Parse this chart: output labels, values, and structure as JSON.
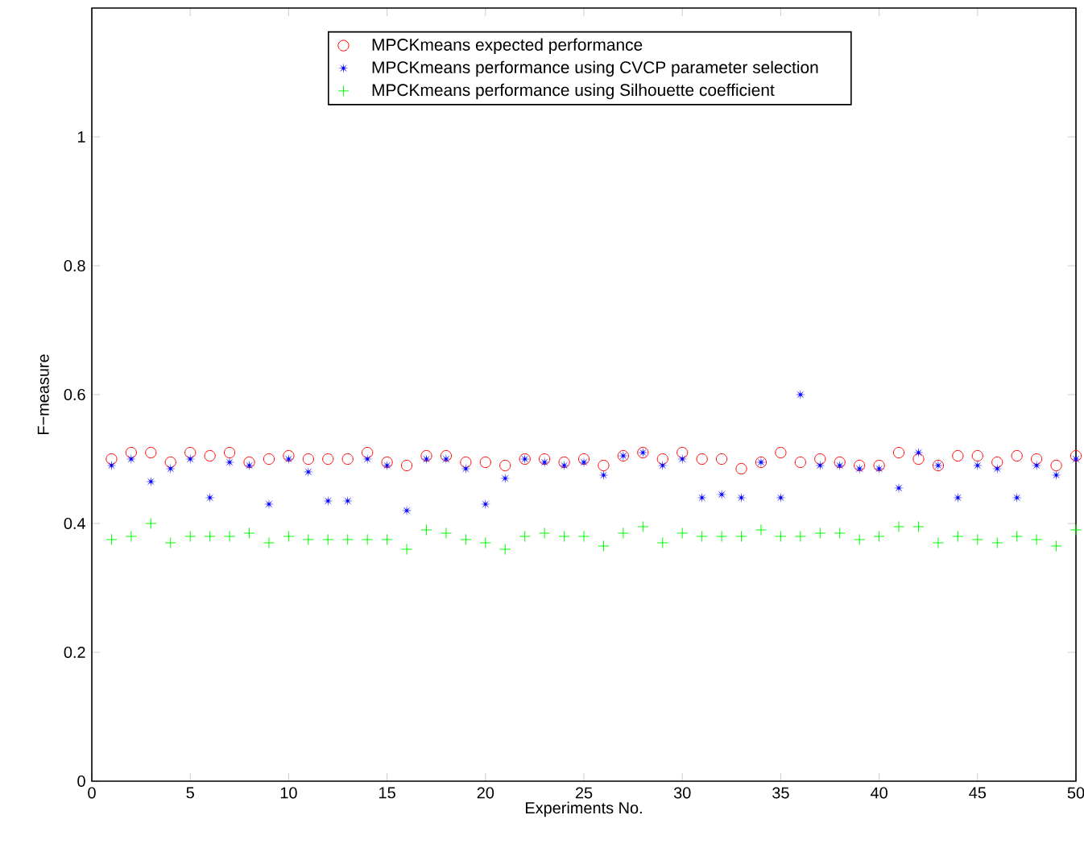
{
  "chart_data": {
    "type": "scatter",
    "xlabel": "Experiments No.",
    "ylabel": "F−measure",
    "x": [
      1,
      2,
      3,
      4,
      5,
      6,
      7,
      8,
      9,
      10,
      11,
      12,
      13,
      14,
      15,
      16,
      17,
      18,
      19,
      20,
      21,
      22,
      23,
      24,
      25,
      26,
      27,
      28,
      29,
      30,
      31,
      32,
      33,
      34,
      35,
      36,
      37,
      38,
      39,
      40,
      41,
      42,
      43,
      44,
      45,
      46,
      47,
      48,
      49,
      50
    ],
    "xlim": [
      0,
      50
    ],
    "xticks": [
      0,
      5,
      10,
      15,
      20,
      25,
      30,
      35,
      40,
      45,
      50
    ],
    "ylim": [
      0,
      1.2
    ],
    "yticks": [
      0,
      0.2,
      0.4,
      0.6,
      0.8,
      1
    ],
    "legend": "top",
    "grid": false,
    "series": [
      {
        "name": "MPCKmeans expected performance",
        "color": "#ff0000",
        "marker": "circle",
        "values": [
          0.5,
          0.51,
          0.51,
          0.495,
          0.51,
          0.505,
          0.51,
          0.495,
          0.5,
          0.505,
          0.5,
          0.5,
          0.5,
          0.51,
          0.495,
          0.49,
          0.505,
          0.505,
          0.495,
          0.495,
          0.49,
          0.5,
          0.5,
          0.495,
          0.5,
          0.49,
          0.505,
          0.51,
          0.5,
          0.51,
          0.5,
          0.5,
          0.485,
          0.495,
          0.51,
          0.495,
          0.5,
          0.495,
          0.49,
          0.49,
          0.51,
          0.5,
          0.49,
          0.505,
          0.505,
          0.495,
          0.505,
          0.5,
          0.49,
          0.505
        ]
      },
      {
        "name": "MPCKmeans performance using CVCP parameter selection",
        "color": "#0000ff",
        "marker": "star",
        "values": [
          0.49,
          0.5,
          0.465,
          0.485,
          0.5,
          0.44,
          0.495,
          0.49,
          0.43,
          0.5,
          0.48,
          0.435,
          0.435,
          0.5,
          0.49,
          0.42,
          0.5,
          0.5,
          0.485,
          0.43,
          0.47,
          0.5,
          0.495,
          0.49,
          0.495,
          0.475,
          0.505,
          0.51,
          0.49,
          0.5,
          0.44,
          0.445,
          0.44,
          0.495,
          0.44,
          0.6,
          0.49,
          0.49,
          0.485,
          0.485,
          0.455,
          0.51,
          0.49,
          0.44,
          0.49,
          0.485,
          0.44,
          0.49,
          0.475,
          0.5
        ]
      },
      {
        "name": "MPCKmeans performance using Silhouette coefficient",
        "color": "#00ff00",
        "marker": "cross",
        "values": [
          0.375,
          0.38,
          0.4,
          0.37,
          0.38,
          0.38,
          0.38,
          0.385,
          0.37,
          0.38,
          0.375,
          0.375,
          0.375,
          0.375,
          0.375,
          0.36,
          0.39,
          0.385,
          0.375,
          0.37,
          0.36,
          0.38,
          0.385,
          0.38,
          0.38,
          0.365,
          0.385,
          0.395,
          0.37,
          0.385,
          0.38,
          0.38,
          0.38,
          0.39,
          0.38,
          0.38,
          0.385,
          0.385,
          0.375,
          0.38,
          0.395,
          0.395,
          0.37,
          0.38,
          0.375,
          0.37,
          0.38,
          0.375,
          0.365,
          0.39
        ]
      }
    ]
  }
}
